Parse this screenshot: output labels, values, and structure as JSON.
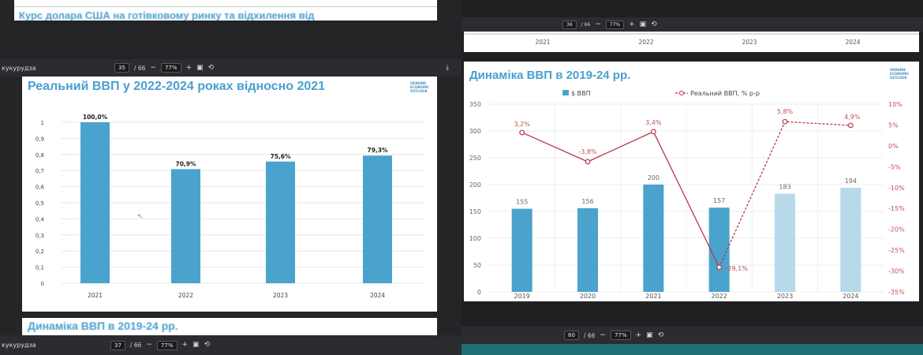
{
  "left_viewer": {
    "prev_page_heading": "Курс долара США на готівковому ринку та відхилення від",
    "toolbar": {
      "doc_title": "кукурудза",
      "page_current": "35",
      "page_total": "/ 66",
      "zoom": "77%",
      "minus": "−",
      "plus": "+"
    },
    "bottom_toolbar": {
      "doc_title": "кукурудза",
      "page_current": "37",
      "page_total": "/ 66",
      "zoom": "77%",
      "minus": "−",
      "plus": "+"
    },
    "next_page_heading": "Динаміка ВВП в 2019-24 рр.",
    "logo_text": [
      "UKRAINE",
      "ECONOMIC",
      "OUTLOOK"
    ]
  },
  "right_viewer": {
    "top_toolbar": {
      "page_current": "36",
      "page_total": "/ 66",
      "zoom": "77%"
    },
    "prev_page_years": [
      "2021",
      "2022",
      "2023",
      "2024"
    ],
    "bottom_toolbar": {
      "page_current": "60",
      "page_total": "/ 66",
      "zoom": "77%",
      "minus": "−",
      "plus": "+"
    },
    "logo_text": [
      "UKRAINE",
      "ECONOMIC",
      "OUTLOOK"
    ]
  },
  "chart_data": [
    {
      "type": "bar",
      "title": "Реальний ВВП у 2022-2024 роках відносно 2021",
      "categories": [
        "2021",
        "2022",
        "2023",
        "2024"
      ],
      "values": [
        1.0,
        0.709,
        0.756,
        0.793
      ],
      "data_labels": [
        "100,0%",
        "70,9%",
        "75,6%",
        "79,3%"
      ],
      "y_ticks": [
        "0",
        "0,1",
        "0,2",
        "0,3",
        "0,4",
        "0,5",
        "0,6",
        "0,7",
        "0,8",
        "0,9",
        "1"
      ],
      "ylim": [
        0,
        1
      ],
      "grid": true,
      "colors": {
        "bar": "#4aa3cc",
        "title": "#4a9fd0",
        "grid": "#e6e6e6"
      }
    },
    {
      "type": "bar+line",
      "title": "Динаміка ВВП в 2019-24 рр.",
      "categories": [
        "2019",
        "2020",
        "2021",
        "2022",
        "2023",
        "2024"
      ],
      "series": [
        {
          "name": "$ ВВП",
          "type": "bar",
          "axis": "left",
          "values": [
            155,
            156,
            200,
            157,
            183,
            194
          ],
          "data_labels": [
            "155",
            "156",
            "200",
            "157",
            "183",
            "194"
          ]
        },
        {
          "name": "Реальний ВВП, % р-р",
          "type": "line",
          "axis": "right",
          "values": [
            3.2,
            -3.8,
            3.4,
            -29.1,
            5.8,
            4.9
          ],
          "data_labels": [
            "3,2%",
            "-3,8%",
            "3,4%",
            "-29,1%",
            "5,8%",
            "4,9%"
          ]
        }
      ],
      "y_left": {
        "ticks": [
          "0",
          "50",
          "100",
          "150",
          "200",
          "250",
          "300",
          "350"
        ],
        "lim": [
          0,
          350
        ]
      },
      "y_right": {
        "ticks": [
          "10%",
          "5%",
          "0%",
          "-5%",
          "-10%",
          "-15%",
          "-20%",
          "-25%",
          "-30%",
          "-35%"
        ],
        "lim": [
          -35,
          10
        ]
      },
      "legend_position": "top",
      "grid": true,
      "colors": {
        "bar": "#4aa3cc",
        "bar_forecast": "#b7d9ea",
        "line": "#b8394a",
        "right_axis_text": "#c0504d"
      }
    }
  ]
}
